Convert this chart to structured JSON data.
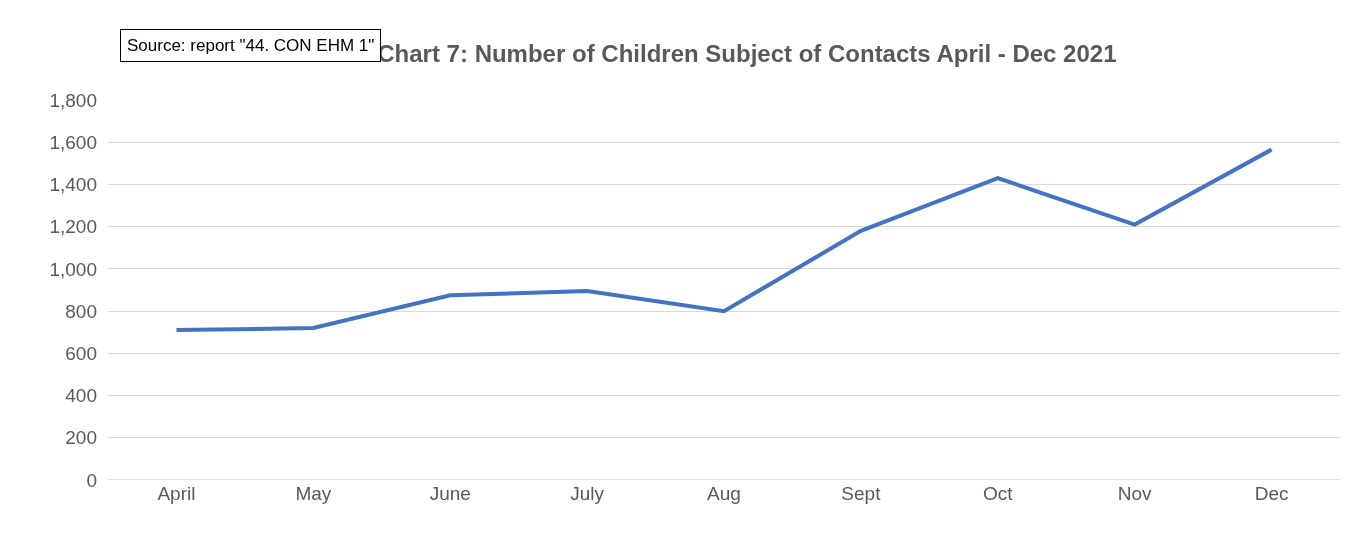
{
  "chart_data": {
    "type": "line",
    "title": "Chart 7: Number of Children Subject of Contacts April - Dec 2021",
    "annotations": [
      "Source: report \"44. CON EHM 1\""
    ],
    "categories": [
      "April",
      "May",
      "June",
      "July",
      "Aug",
      "Sept",
      "Oct",
      "Nov",
      "Dec"
    ],
    "series": [
      {
        "color": "#4472c4",
        "values": [
          710,
          720,
          875,
          895,
          800,
          1180,
          1430,
          1210,
          1565
        ]
      }
    ],
    "ylim": [
      0,
      1800
    ],
    "yticks": [
      {
        "value": 0,
        "label": "0"
      },
      {
        "value": 200,
        "label": "200"
      },
      {
        "value": 400,
        "label": "400"
      },
      {
        "value": 600,
        "label": "600"
      },
      {
        "value": 800,
        "label": "800"
      },
      {
        "value": 1000,
        "label": "1,000"
      },
      {
        "value": 1200,
        "label": "1,200"
      },
      {
        "value": 1400,
        "label": "1,400"
      },
      {
        "value": 1600,
        "label": "1,600"
      },
      {
        "value": 1800,
        "label": "1,800"
      }
    ],
    "grid": "y",
    "marker": "none",
    "line_style": "solid"
  }
}
